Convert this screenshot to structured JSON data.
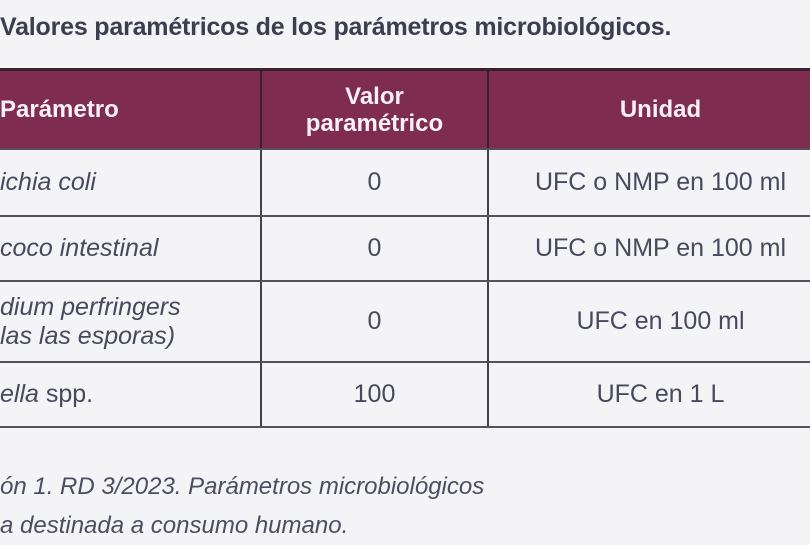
{
  "colors": {
    "page-bg": "#f4f3f5",
    "header-bg": "#7e2c4f",
    "header-text": "#f7f0f4",
    "title-text": "#3b3e4f",
    "body-text": "#474a5d",
    "caption-text": "#4a4e60",
    "border-dark": "#342331",
    "border-gray": "#55515c",
    "border-mid": "#45424c"
  },
  "title": "Valores paramétricos de los parámetros microbiológicos.",
  "table": {
    "headers": {
      "parametro": "Parámetro",
      "valor_line1": "Valor",
      "valor_line2": "paramétrico",
      "unidad": "Unidad"
    },
    "rows": [
      {
        "name_parts": [
          {
            "text": "ichia coli",
            "italic": true
          }
        ],
        "valor": "0",
        "unidad": "UFC o NMP en 100 ml"
      },
      {
        "name_parts": [
          {
            "text": "coco intestinal",
            "italic": true
          }
        ],
        "valor": "0",
        "unidad": "UFC o NMP en 100 ml"
      },
      {
        "name_lines": [
          {
            "text": "dium perfringers",
            "italic": true
          },
          {
            "text": "las las esporas)",
            "italic": true
          }
        ],
        "valor": "0",
        "unidad": "UFC en 100 ml"
      },
      {
        "name_parts": [
          {
            "text": "ella",
            "italic": true
          },
          {
            "text": " spp.",
            "italic": false
          }
        ],
        "valor": "100",
        "unidad": "UFC en 1 L"
      }
    ]
  },
  "caption": {
    "line1": "ón 1. RD 3/2023. Parámetros microbiológicos",
    "line2": "a destinada a consumo humano."
  }
}
